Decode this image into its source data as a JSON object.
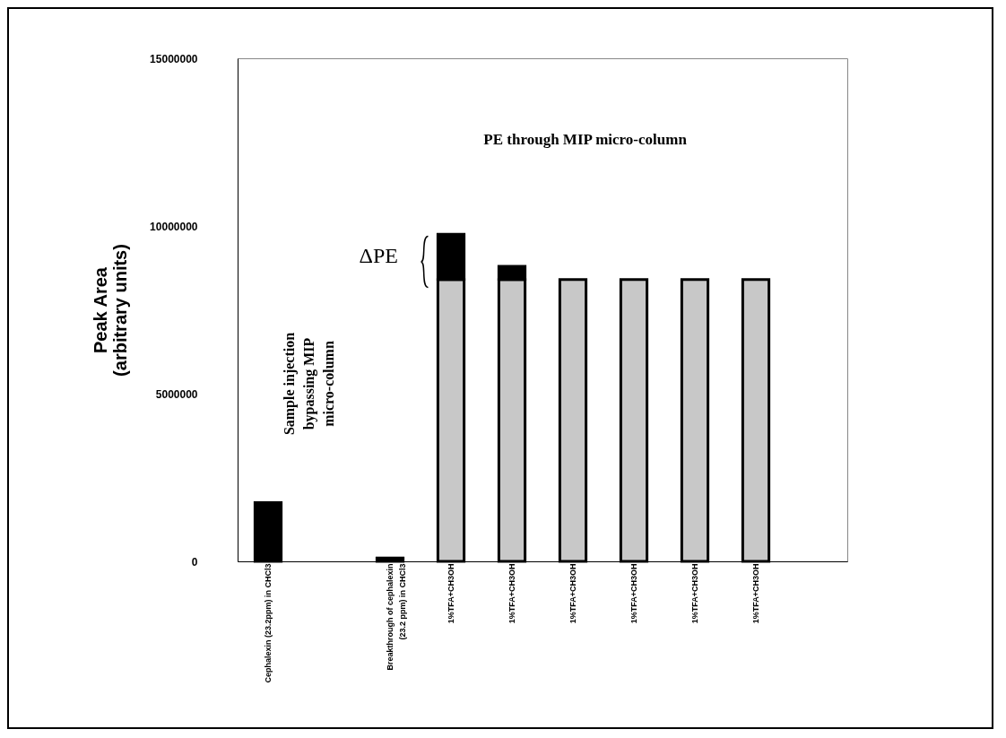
{
  "chart_data": {
    "type": "bar",
    "stacked": true,
    "ylabel": "Peak Area\n(arbitrary units)",
    "categories": [
      "Cephalexin (23.2ppm) in CHCl3",
      null,
      "Breakthrough of cephalexin\n(23.2 ppm) in CHCl3",
      "1%TFA+CH3OH",
      "1%TFA+CH3OH",
      "1%TFA+CH3OH",
      "1%TFA+CH3OH",
      "1%TFA+CH3OH",
      "1%TFA+CH3OH",
      null
    ],
    "series": [
      {
        "color": "#c8c8c8",
        "values": [
          null,
          null,
          null,
          8400000,
          8400000,
          8400000,
          8400000,
          8400000,
          8400000,
          null
        ]
      },
      {
        "color": "#000000",
        "values": [
          1750000,
          null,
          100000,
          1350000,
          400000,
          null,
          null,
          null,
          null,
          null
        ]
      }
    ],
    "ylim": [
      0,
      15000000
    ],
    "yticks": [
      0,
      5000000,
      10000000,
      15000000
    ],
    "annotations": [
      "PE through MIP micro-column",
      "Sample injection\nbypassing MIP\nmicro-column",
      "ΔPE"
    ]
  }
}
